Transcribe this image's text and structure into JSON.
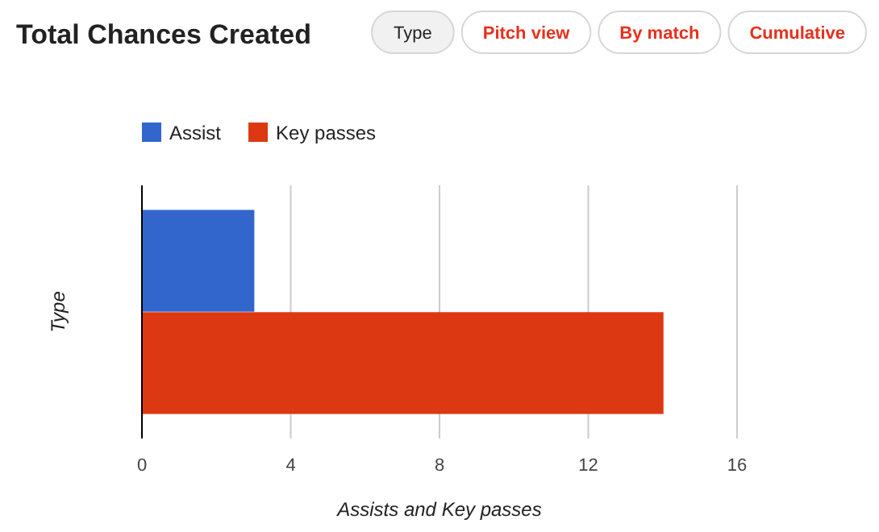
{
  "chart_data": {
    "type": "bar",
    "orientation": "horizontal",
    "title": "Total Chances Created",
    "ylabel": "Type",
    "xlabel": "Assists and Key passes",
    "categories": [
      null
    ],
    "series": [
      {
        "name": "Assist",
        "color": "#3366cc",
        "values": [
          3
        ]
      },
      {
        "name": "Key passes",
        "color": "#dc3912",
        "values": [
          14
        ]
      }
    ],
    "xlim": [
      0,
      16
    ],
    "xticks": [
      0,
      4,
      8,
      12,
      16
    ],
    "grid": "x",
    "legend": "top left",
    "annotations": [
      "Type",
      "Pitch view",
      "By match",
      "Cumulative"
    ]
  }
}
